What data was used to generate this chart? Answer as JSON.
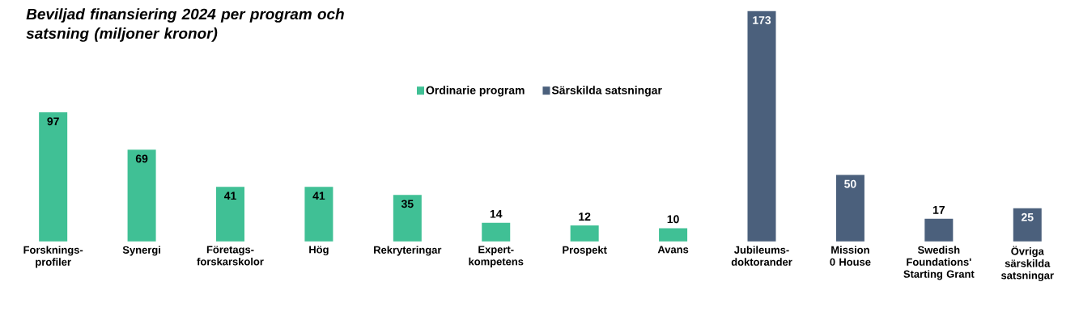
{
  "chart_data": {
    "type": "bar",
    "title": "Beviljad finansiering 2024 per program och satsning (miljoner kronor)",
    "categories": [
      "Forsknings-profiler",
      "Synergi",
      "Företags-forskarskolor",
      "Hög",
      "Rekryteringar",
      "Expert-kompetens",
      "Prospekt",
      "Avans",
      "Jubileums-doktorander",
      "Mission 0 House",
      "Swedish Foundations' Starting Grant",
      "Övriga särskilda satsningar"
    ],
    "series": [
      {
        "name": "Ordinarie program",
        "color": "#40c095",
        "values": [
          97,
          69,
          41,
          41,
          35,
          14,
          12,
          10,
          null,
          null,
          null,
          null
        ]
      },
      {
        "name": "Särskilda satsningar",
        "color": "#4b607c",
        "values": [
          null,
          null,
          null,
          null,
          null,
          null,
          null,
          null,
          173,
          50,
          17,
          25
        ]
      }
    ],
    "data_labels": true,
    "legend": "top",
    "grid": false
  }
}
